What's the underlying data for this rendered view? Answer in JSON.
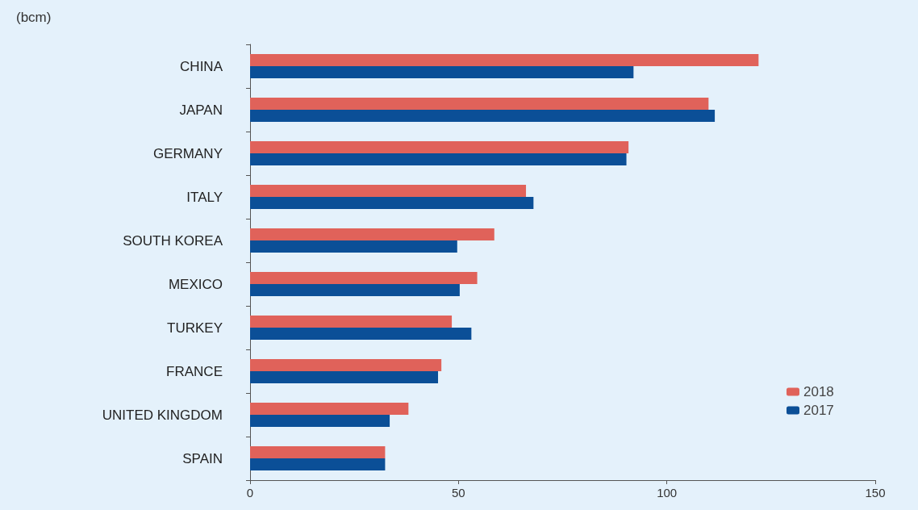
{
  "chart_data": {
    "type": "bar",
    "orientation": "horizontal",
    "ylabel": "(bcm)",
    "categories": [
      "CHINA",
      "JAPAN",
      "GERMANY",
      "ITALY",
      "SOUTH KOREA",
      "MEXICO",
      "TURKEY",
      "FRANCE",
      "UNITED KINGDOM",
      "SPAIN"
    ],
    "series": [
      {
        "name": "2018",
        "color": "#e0625a",
        "values": [
          122,
          110,
          90.8,
          66.2,
          58.6,
          54.5,
          48.4,
          45.9,
          38,
          32.4
        ]
      },
      {
        "name": "2017",
        "color": "#0b4f97",
        "values": [
          92,
          111.5,
          90.3,
          68,
          49.7,
          50.3,
          53.1,
          45.1,
          33.5,
          32.4
        ]
      }
    ],
    "xlim": [
      0,
      150
    ],
    "xticks": [
      0,
      50,
      100,
      150
    ],
    "grid": false,
    "legend": "bottom right"
  }
}
